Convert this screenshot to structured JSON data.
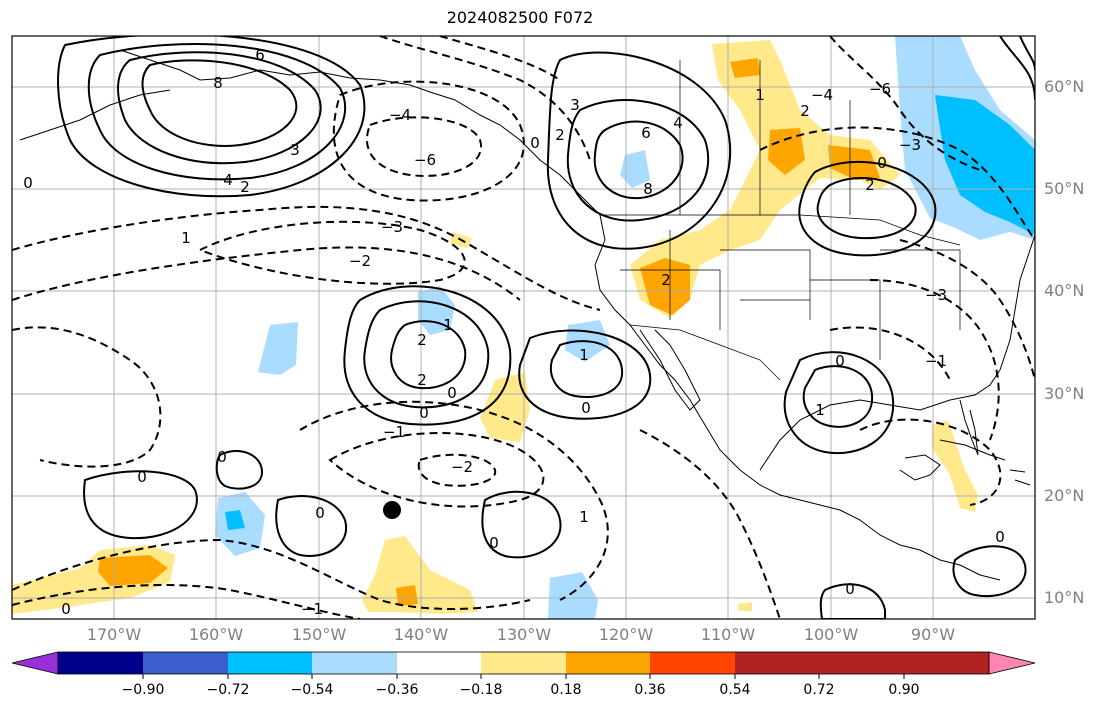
{
  "title": "2024082500 F072",
  "map": {
    "projection": "plate-carree",
    "lon_range": [
      -180,
      -80
    ],
    "lat_range": [
      7,
      64
    ],
    "gridlines": true,
    "features": [
      "coastlines",
      "country borders",
      "US state borders"
    ]
  },
  "lat_labels": [
    "60°N",
    "50°N",
    "40°N",
    "30°N",
    "20°N",
    "10°N"
  ],
  "lon_labels": [
    "170°W",
    "160°W",
    "150°W",
    "140°W",
    "130°W",
    "120°W",
    "110°W",
    "100°W",
    "90°W"
  ],
  "colorbar": {
    "extend": "both",
    "colors": [
      "#9b30d9",
      "#00008b",
      "#3a5fcd",
      "#00bfff",
      "#aadcff",
      "#ffffff",
      "#ffe98a",
      "#ffa500",
      "#ff4500",
      "#b22222",
      "#ff86b0"
    ],
    "tick_labels": [
      "−0.90",
      "−0.72",
      "−0.54",
      "−0.36",
      "−0.18",
      "0.18",
      "0.36",
      "0.54",
      "0.72",
      "0.90"
    ]
  },
  "contour_labels": [
    "6",
    "8",
    "4",
    "3",
    "2",
    "1",
    "0",
    "−1",
    "−2",
    "−3",
    "−4",
    "−6"
  ],
  "marker": {
    "type": "filled-circle",
    "lon": -143,
    "lat": 18.5
  }
}
